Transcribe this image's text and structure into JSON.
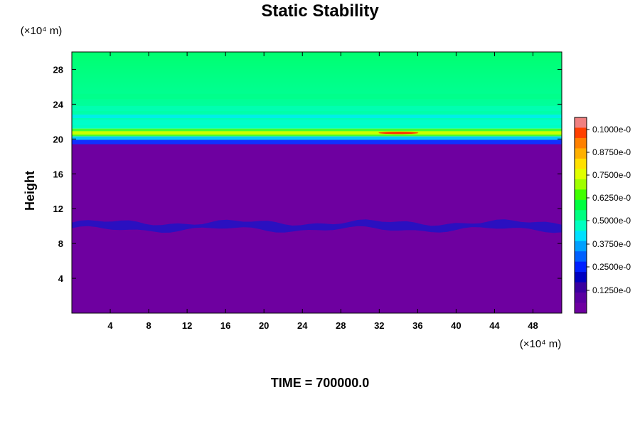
{
  "chart_data": {
    "type": "heatmap",
    "title": "Static Stability",
    "ylabel": "Height",
    "x_unit": "(×10⁴ m)",
    "y_unit": "(×10⁴ m)",
    "xlim": [
      0,
      51
    ],
    "ylim": [
      0,
      30
    ],
    "x_ticks": [
      4,
      8,
      12,
      16,
      20,
      24,
      28,
      32,
      36,
      40,
      44,
      48
    ],
    "y_ticks": [
      4,
      8,
      12,
      16,
      20,
      24,
      28
    ],
    "grid": false,
    "colorbar": {
      "placement": "right",
      "labels": [
        "0.1000e-0",
        "0.8750e-0",
        "0.7500e-0",
        "0.6250e-0",
        "0.5000e-0",
        "0.3750e-0",
        "0.2500e-0",
        "0.1250e-0"
      ],
      "colors": [
        "#f08080",
        "#ff4000",
        "#ff8000",
        "#ffb000",
        "#ffe000",
        "#e0ff00",
        "#a0ff00",
        "#40ff00",
        "#00ff40",
        "#00ff80",
        "#00ffc0",
        "#00e0ff",
        "#00a0ff",
        "#0060ff",
        "#0020ff",
        "#0000c0",
        "#3a00a0",
        "#5a00a0",
        "#6e00a0"
      ]
    },
    "bands": [
      {
        "y": [
          0,
          19.5
        ],
        "value": "low",
        "color": "#6e00a0"
      },
      {
        "y": [
          9.4,
          10.7
        ],
        "value": "minimum",
        "color": "#2a10c0"
      },
      {
        "y": [
          19.3,
          19.9
        ],
        "value": "minimum",
        "color": "#1030ff"
      },
      {
        "y": [
          19.9,
          21.2
        ],
        "value": "high",
        "color": "#c8ff00"
      },
      {
        "y": [
          21.2,
          23.5
        ],
        "value": "medium",
        "color": "#00ffb0"
      },
      {
        "y": [
          23.5,
          30
        ],
        "value": "medium",
        "color": "#00ff70"
      }
    ]
  },
  "footer": {
    "time_text": "TIME = 700000.0"
  }
}
